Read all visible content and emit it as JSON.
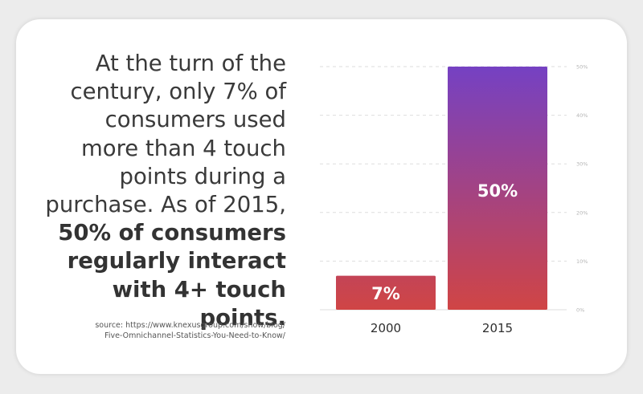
{
  "headline": {
    "text_regular": "At the turn of the century, only 7% of consumers used more than 4 touch points during a purchase. As of 2015,",
    "text_bold": "50% of consumers regularly interact with 4+ touch points."
  },
  "source": {
    "line1": "source: https://www.knexusgroup.com/show/blog/",
    "line2": "Five-Omnichannel-Statistics-You-Need-to-Know/"
  },
  "colors": {
    "bar_top": "#7541c3",
    "bar_bottom": "#d04545",
    "gridline": "#dddddd",
    "tick_text": "#b5b5b5"
  },
  "chart_data": {
    "type": "bar",
    "categories": [
      "2000",
      "2015"
    ],
    "values": [
      7,
      50
    ],
    "data_labels": [
      "7%",
      "50%"
    ],
    "y_ticks": [
      0,
      10,
      20,
      30,
      40,
      50
    ],
    "y_tick_labels": [
      "0%",
      "10%",
      "20%",
      "30%",
      "40%",
      "50%"
    ],
    "ylim": [
      0,
      50
    ],
    "grid": true,
    "title": "",
    "xlabel": "",
    "ylabel": ""
  }
}
